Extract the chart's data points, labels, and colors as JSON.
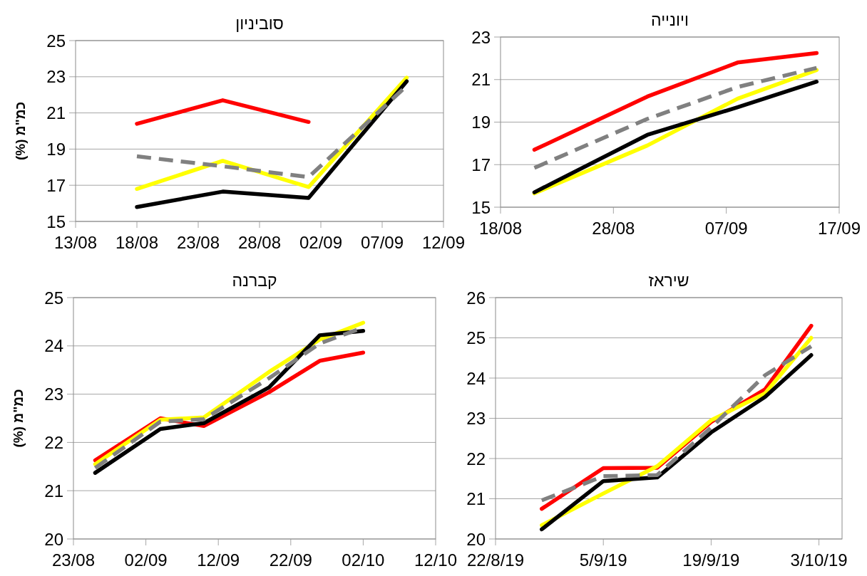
{
  "chart_data": [
    {
      "type": "line",
      "title": "סוביניון",
      "ylabel": "כמ\"מ (%)",
      "x": [
        "--08-18",
        "--08-25",
        "--09-01",
        "--09-09"
      ],
      "xlim": [
        "--08-13",
        "--09-12"
      ],
      "xticks": [
        {
          "value": "--08-13",
          "label": "13/08"
        },
        {
          "value": "--08-18",
          "label": "18/08"
        },
        {
          "value": "--08-23",
          "label": "23/08"
        },
        {
          "value": "--08-28",
          "label": "28/08"
        },
        {
          "value": "--09-02",
          "label": "02/09"
        },
        {
          "value": "--09-07",
          "label": "07/09"
        },
        {
          "value": "--09-12",
          "label": "12/09"
        }
      ],
      "ylim": [
        15,
        25
      ],
      "yticks": [
        15,
        17,
        19,
        21,
        23,
        25
      ],
      "grid": "y",
      "series": [
        {
          "color": "#ff0000",
          "values": [
            20.4,
            21.7,
            20.5,
            null
          ]
        },
        {
          "color": "#ffff00",
          "values": [
            16.8,
            18.35,
            16.9,
            22.95
          ]
        },
        {
          "color": "#000000",
          "values": [
            15.8,
            16.65,
            16.3,
            22.75
          ]
        },
        {
          "color": "#808080",
          "line_style": "dashed",
          "values": [
            18.6,
            18.05,
            17.45,
            22.5
          ]
        }
      ]
    },
    {
      "type": "line",
      "title": "ויונייה",
      "x": [
        "--08-21",
        "--08-31",
        "--09-08",
        "--09-15"
      ],
      "xlim": [
        "--08-18",
        "--09-17"
      ],
      "xticks": [
        {
          "value": "--08-18",
          "label": "18/08"
        },
        {
          "value": "--08-28",
          "label": "28/08"
        },
        {
          "value": "--09-07",
          "label": "07/09"
        },
        {
          "value": "--09-17",
          "label": "17/09"
        }
      ],
      "ylim": [
        15,
        23
      ],
      "yticks": [
        15,
        17,
        19,
        21,
        23
      ],
      "grid": "y",
      "series": [
        {
          "color": "#ff0000",
          "values": [
            17.7,
            20.2,
            21.8,
            22.25
          ]
        },
        {
          "color": "#ffff00",
          "values": [
            15.65,
            17.9,
            20.1,
            21.45
          ]
        },
        {
          "color": "#000000",
          "values": [
            15.7,
            18.4,
            19.7,
            20.9
          ]
        },
        {
          "color": "#808080",
          "line_style": "dashed",
          "values": [
            16.85,
            19.15,
            20.65,
            21.55
          ]
        }
      ]
    },
    {
      "type": "line",
      "title": "קברנה",
      "ylabel": "כמ\"מ (%)",
      "x": [
        "--08-26",
        "--09-04",
        "--09-10",
        "--09-19",
        "--09-26",
        "--10-02"
      ],
      "xlim": [
        "--08-23",
        "--10-12"
      ],
      "xticks": [
        {
          "value": "--08-23",
          "label": "23/08"
        },
        {
          "value": "--09-02",
          "label": "02/09"
        },
        {
          "value": "--09-12",
          "label": "12/09"
        },
        {
          "value": "--09-22",
          "label": "22/09"
        },
        {
          "value": "--10-02",
          "label": "02/10"
        },
        {
          "value": "--10-12",
          "label": "12/10"
        }
      ],
      "ylim": [
        20,
        25
      ],
      "yticks": [
        20,
        21,
        22,
        23,
        24,
        25
      ],
      "grid": "y",
      "series": [
        {
          "color": "#ff0000",
          "values": [
            21.63,
            22.5,
            22.34,
            23.04,
            23.69,
            23.86
          ]
        },
        {
          "color": "#ffff00",
          "values": [
            21.55,
            22.47,
            22.52,
            23.46,
            24.13,
            24.48
          ]
        },
        {
          "color": "#000000",
          "values": [
            21.37,
            22.28,
            22.4,
            23.14,
            24.22,
            24.31
          ]
        },
        {
          "color": "#808080",
          "line_style": "dashed",
          "values": [
            21.47,
            22.43,
            22.48,
            23.33,
            24.05,
            24.38
          ]
        }
      ]
    },
    {
      "type": "line",
      "title": "שיראז",
      "x": [
        "2019-08-28",
        "2019-09-05",
        "2019-09-12",
        "2019-09-19",
        "2019-09-26",
        "2019-10-02"
      ],
      "xlim": [
        "2019-08-22",
        "2019-10-06"
      ],
      "xticks": [
        {
          "value": "2019-08-22",
          "label": "22/8/19"
        },
        {
          "value": "2019-09-05",
          "label": "5/9/19"
        },
        {
          "value": "2019-09-19",
          "label": "19/9/19"
        },
        {
          "value": "2019-10-03",
          "label": "3/10/19"
        }
      ],
      "ylim": [
        20,
        26
      ],
      "yticks": [
        20,
        21,
        22,
        23,
        24,
        25,
        26
      ],
      "grid": "y",
      "series": [
        {
          "color": "#ff0000",
          "values": [
            20.75,
            21.76,
            21.77,
            22.91,
            23.72,
            25.3
          ]
        },
        {
          "color": "#ffff00",
          "values": [
            20.34,
            21.13,
            21.81,
            22.95,
            23.62,
            25.0
          ]
        },
        {
          "color": "#000000",
          "values": [
            20.24,
            21.44,
            21.53,
            22.65,
            23.53,
            24.57
          ]
        },
        {
          "color": "#808080",
          "line_style": "dashed",
          "values": [
            20.96,
            21.56,
            21.59,
            22.77,
            24.07,
            24.79
          ]
        }
      ]
    }
  ]
}
